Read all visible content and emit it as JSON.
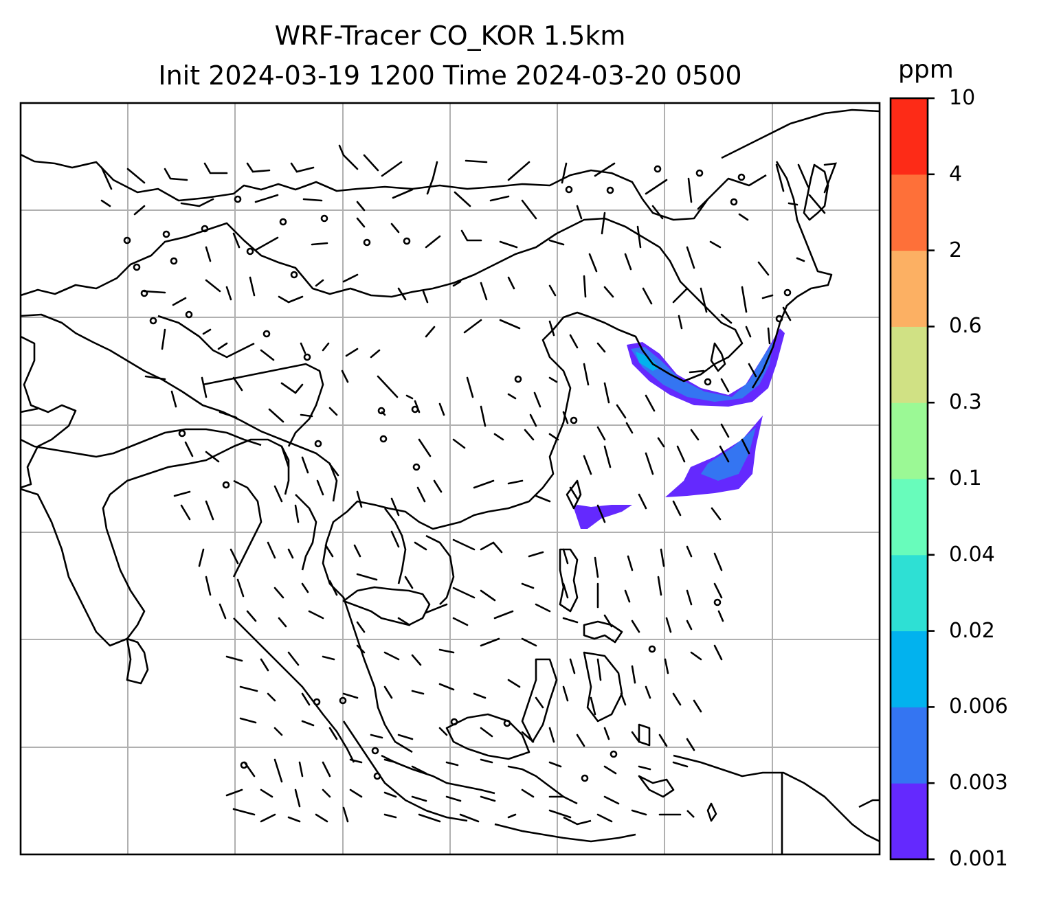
{
  "title": {
    "line1": "WRF-Tracer CO_KOR 1.5km",
    "line2": "Init 2024-03-19 1200 Time 2024-03-20 0500"
  },
  "colorbar": {
    "units": "ppm",
    "ticks": [
      "0.001",
      "0.003",
      "0.006",
      "0.02",
      "0.04",
      "0.1",
      "0.3",
      "0.6",
      "2",
      "4",
      "10"
    ],
    "colors": [
      "#6429fe",
      "#3475f2",
      "#02b2ee",
      "#2ee0d4",
      "#68fcbb",
      "#9bf995",
      "#d0e184",
      "#fcb063",
      "#fe7039",
      "#fd2b17"
    ]
  },
  "map": {
    "grid": "on",
    "coastline_color": "#000000",
    "barb_color": "#000000"
  }
}
